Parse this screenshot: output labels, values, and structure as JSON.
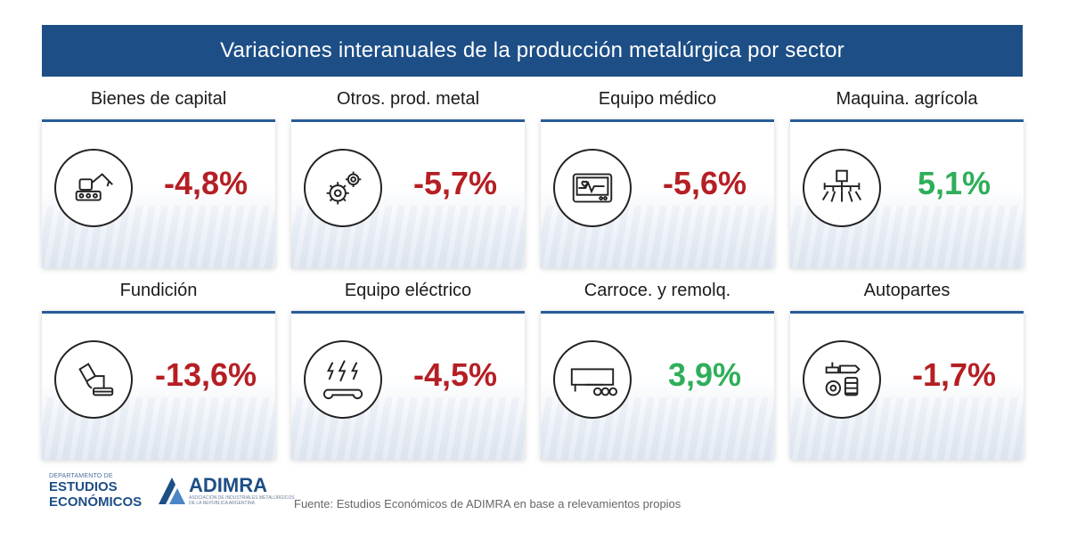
{
  "header": {
    "title": "Variaciones interanuales de la producción metalúrgica por sector"
  },
  "colors": {
    "banner": "#1d4e86",
    "negative": "#b51f24",
    "positive": "#2fae5a"
  },
  "sectors": [
    {
      "label": "Bienes de capital",
      "value": "-4,8%",
      "sign": "negative",
      "icon": "robot-arm-icon"
    },
    {
      "label": "Otros. prod. metal",
      "value": "-5,7%",
      "sign": "negative",
      "icon": "gears-icon"
    },
    {
      "label": "Equipo médico",
      "value": "-5,6%",
      "sign": "negative",
      "icon": "heart-monitor-icon"
    },
    {
      "label": "Maquina. agrícola",
      "value": "5,1%",
      "sign": "positive",
      "icon": "sprayer-icon"
    },
    {
      "label": "Fundición",
      "value": "-13,6%",
      "sign": "negative",
      "icon": "foundry-ladle-icon"
    },
    {
      "label": "Equipo eléctrico",
      "value": "-4,5%",
      "sign": "negative",
      "icon": "electric-wrench-icon"
    },
    {
      "label": "Carroce. y remolq.",
      "value": "3,9%",
      "sign": "positive",
      "icon": "trailer-icon"
    },
    {
      "label": "Autopartes",
      "value": "-1,7%",
      "sign": "negative",
      "icon": "auto-parts-icon"
    }
  ],
  "footer": {
    "dept_small": "DEPARTAMENTO DE",
    "dept_line1": "ESTUDIOS",
    "dept_line2": "ECONÓMICOS",
    "brand": "ADIMRA",
    "brand_tag": "ASOCIACIÓN DE INDUSTRIALES METALÚRGICOS DE LA REPÚBLICA ARGENTINA",
    "source": "Fuente: Estudios Económicos de ADIMRA en base a relevamientos propios"
  }
}
